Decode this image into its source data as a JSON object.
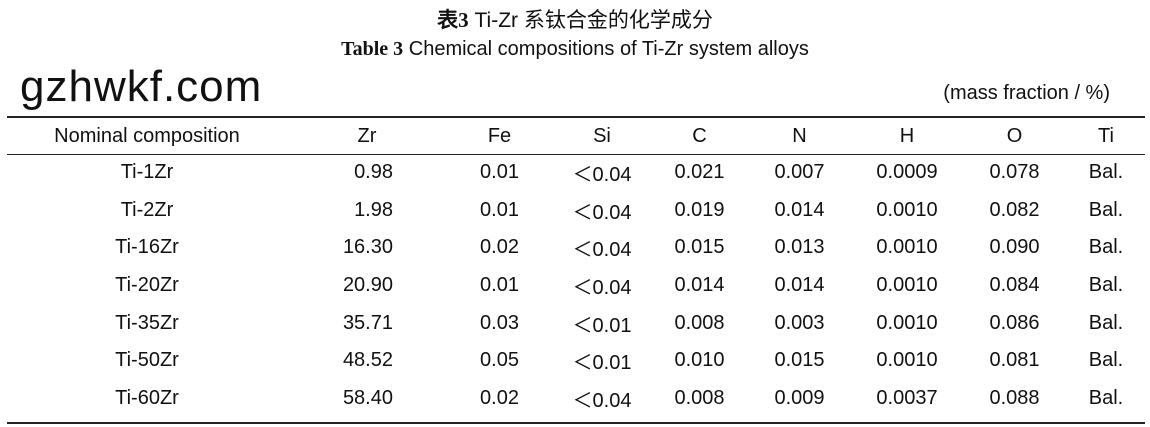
{
  "caption": {
    "cn_label": "表3",
    "cn_text": "Ti-Zr 系钛合金的化学成分",
    "en_label": "Table 3",
    "en_text": "Chemical compositions of Ti-Zr system alloys",
    "unit": "(mass fraction / %)"
  },
  "table": {
    "headers": [
      "Nominal composition",
      "Zr",
      "Fe",
      "Si",
      "C",
      "N",
      "H",
      "O",
      "Ti"
    ],
    "rows": [
      [
        "Ti-1Zr",
        "0.98",
        "0.01",
        "＜0.04",
        "0.021",
        "0.007",
        "0.0009",
        "0.078",
        "Bal."
      ],
      [
        "Ti-2Zr",
        "1.98",
        "0.01",
        "＜0.04",
        "0.019",
        "0.014",
        "0.0010",
        "0.082",
        "Bal."
      ],
      [
        "Ti-16Zr",
        "16.30",
        "0.02",
        "＜0.04",
        "0.015",
        "0.013",
        "0.0010",
        "0.090",
        "Bal."
      ],
      [
        "Ti-20Zr",
        "20.90",
        "0.01",
        "＜0.04",
        "0.014",
        "0.014",
        "0.0010",
        "0.084",
        "Bal."
      ],
      [
        "Ti-35Zr",
        "35.71",
        "0.03",
        "＜0.01",
        "0.008",
        "0.003",
        "0.0010",
        "0.086",
        "Bal."
      ],
      [
        "Ti-50Zr",
        "48.52",
        "0.05",
        "＜0.01",
        "0.010",
        "0.015",
        "0.0010",
        "0.081",
        "Bal."
      ],
      [
        "Ti-60Zr",
        "58.40",
        "0.02",
        "＜0.04",
        "0.008",
        "0.009",
        "0.0037",
        "0.088",
        "Bal."
      ]
    ]
  },
  "watermark": "gzhwkf.com"
}
